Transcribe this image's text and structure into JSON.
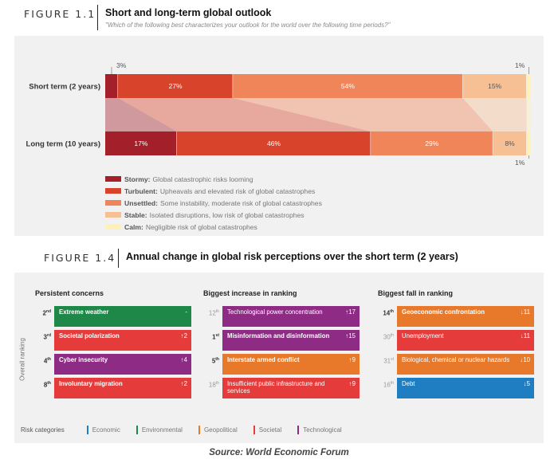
{
  "figure_1_1": {
    "number": "FIGURE 1.1",
    "title": "Short and long-term global outlook",
    "subtitle": "\"Which of the following best characterizes your outlook for the world over the following time periods?\""
  },
  "chart_data": [
    {
      "type": "bar",
      "orientation": "horizontal-stacked",
      "title": "Short and long-term global outlook",
      "subtitle": "\"Which of the following best characterizes your outlook for the world over the following time periods?\"",
      "categories": [
        "Short term (2 years)",
        "Long term (10 years)"
      ],
      "series": [
        {
          "name": "Stormy",
          "description": "Global catastrophic risks looming",
          "color": "#a31f2a",
          "values": [
            3,
            17
          ],
          "labels": [
            "3%",
            "17%"
          ]
        },
        {
          "name": "Turbulent",
          "description": "Upheavals and elevated risk of global catastrophes",
          "color": "#d8432b",
          "values": [
            27,
            46
          ],
          "labels": [
            "27%",
            "46%"
          ]
        },
        {
          "name": "Unsettled",
          "description": "Some instability, moderate risk of global catastrophes",
          "color": "#f0855a",
          "values": [
            54,
            29
          ],
          "labels": [
            "54%",
            "29%"
          ]
        },
        {
          "name": "Stable",
          "description": "Isolated disruptions, low risk of global catastrophes",
          "color": "#f7bf94",
          "values": [
            15,
            8
          ],
          "labels": [
            "15%",
            "8%"
          ]
        },
        {
          "name": "Calm",
          "description": "Negligible risk of global catastrophes",
          "color": "#fdf0b8",
          "values": [
            1,
            1
          ],
          "labels": [
            "1%",
            "1%"
          ]
        }
      ],
      "xlim": [
        0,
        100
      ],
      "legend_position": "bottom-left"
    },
    {
      "type": "table",
      "title": "Annual change in global risk perceptions over the short term (2 years)",
      "columns": [
        "Persistent concerns",
        "Biggest increase in ranking",
        "Biggest fall in ranking"
      ],
      "rows": [
        [
          {
            "rank": 2,
            "risk": "Extreme weather",
            "category": "Environmental",
            "change": "-"
          },
          {
            "rank": 12,
            "risk": "Technological power concentration",
            "category": "Technological",
            "change": "+17"
          },
          {
            "rank": 14,
            "risk": "Geoeconomic confrontation",
            "category": "Geopolitical",
            "change": "-11"
          }
        ],
        [
          {
            "rank": 3,
            "risk": "Societal polarization",
            "category": "Societal",
            "change": "+2"
          },
          {
            "rank": 1,
            "risk": "Misinformation and disinformation",
            "category": "Technological",
            "change": "+15"
          },
          {
            "rank": 30,
            "risk": "Unemployment",
            "category": "Societal",
            "change": "-11"
          }
        ],
        [
          {
            "rank": 4,
            "risk": "Cyber insecurity",
            "category": "Technological",
            "change": "+4"
          },
          {
            "rank": 5,
            "risk": "Interstate armed conflict",
            "category": "Geopolitical",
            "change": "+9"
          },
          {
            "rank": 31,
            "risk": "Biological, chemical or nuclear hazards",
            "category": "Geopolitical",
            "change": "-10"
          }
        ],
        [
          {
            "rank": 8,
            "risk": "Involuntary migration",
            "category": "Societal",
            "change": "+2"
          },
          {
            "rank": 18,
            "risk": "Insufficient public infrastructure and services",
            "category": "Societal",
            "change": "+9"
          },
          {
            "rank": 16,
            "risk": "Debt",
            "category": "Economic",
            "change": "-5"
          }
        ]
      ]
    }
  ],
  "outlook_legend": [
    {
      "name": "Stormy:",
      "description": "Global catastrophic risks looming",
      "color": "#a31f2a"
    },
    {
      "name": "Turbulent:",
      "description": "Upheavals and elevated risk of global catastrophes",
      "color": "#d8432b"
    },
    {
      "name": "Unsettled:",
      "description": "Some instability, moderate risk of global catastrophes",
      "color": "#f0855a"
    },
    {
      "name": "Stable:",
      "description": "Isolated disruptions, low risk of global catastrophes",
      "color": "#f7bf94"
    },
    {
      "name": "Calm:",
      "description": "Negligible risk of global catastrophes",
      "color": "#fdf0b8"
    }
  ],
  "figure_1_4": {
    "number": "FIGURE 1.4",
    "title": "Annual change in global risk perceptions over the short term (2 years)",
    "axis_label": "Overall ranking",
    "columns": [
      {
        "title": "Persistent concerns",
        "items": [
          {
            "rank_num": "2",
            "rank_sup": "nd",
            "label": "Extreme weather",
            "change": "-",
            "color": "#1e8848",
            "highlight": true
          },
          {
            "rank_num": "3",
            "rank_sup": "rd",
            "label": "Societal polarization",
            "change": "↑2",
            "color": "#e63b3b",
            "highlight": true
          },
          {
            "rank_num": "4",
            "rank_sup": "th",
            "label": "Cyber insecurity",
            "change": "↑4",
            "color": "#8e2c85",
            "highlight": true
          },
          {
            "rank_num": "8",
            "rank_sup": "th",
            "label": "Involuntary migration",
            "change": "↑2",
            "color": "#e63b3b",
            "highlight": true
          }
        ]
      },
      {
        "title": "Biggest increase in ranking",
        "items": [
          {
            "rank_num": "12",
            "rank_sup": "th",
            "label": "Technological power concentration",
            "change": "↑17",
            "color": "#8e2c85",
            "highlight": false
          },
          {
            "rank_num": "1",
            "rank_sup": "st",
            "label": "Misinformation and disinformation",
            "change": "↑15",
            "color": "#8e2c85",
            "highlight": true
          },
          {
            "rank_num": "5",
            "rank_sup": "th",
            "label": "Interstate armed conflict",
            "change": "↑9",
            "color": "#e8792b",
            "highlight": true
          },
          {
            "rank_num": "18",
            "rank_sup": "th",
            "label": "Insufficient public infrastructure and services",
            "change": "↑9",
            "color": "#e63b3b",
            "highlight": false
          }
        ]
      },
      {
        "title": "Biggest fall in ranking",
        "items": [
          {
            "rank_num": "14",
            "rank_sup": "th",
            "label": "Geoeconomic confrontation",
            "change": "↓11",
            "color": "#e8792b",
            "highlight": true
          },
          {
            "rank_num": "30",
            "rank_sup": "th",
            "label": "Unemployment",
            "change": "↓11",
            "color": "#e63b3b",
            "highlight": false
          },
          {
            "rank_num": "31",
            "rank_sup": "st",
            "label": "Biological, chemical or nuclear hazards",
            "change": "↓10",
            "color": "#e8792b",
            "highlight": false
          },
          {
            "rank_num": "16",
            "rank_sup": "th",
            "label": "Debt",
            "change": "↓5",
            "color": "#1f7dc1",
            "highlight": false
          }
        ]
      }
    ],
    "categories_title": "Risk categories",
    "categories": [
      {
        "name": "Economic",
        "color": "#1f7dc1"
      },
      {
        "name": "Environmental",
        "color": "#1e8848"
      },
      {
        "name": "Geopolitical",
        "color": "#e8792b"
      },
      {
        "name": "Societal",
        "color": "#e63b3b"
      },
      {
        "name": "Technological",
        "color": "#8e2c85"
      }
    ]
  },
  "source": "Source: World Economic Forum"
}
